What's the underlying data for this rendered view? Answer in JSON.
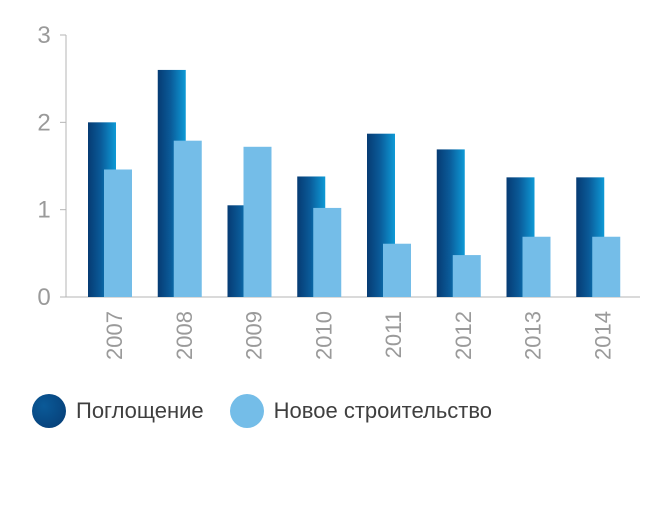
{
  "chart_data": {
    "type": "bar",
    "categories": [
      "2007",
      "2008",
      "2009",
      "2010",
      "2011",
      "2012",
      "2013",
      "2014"
    ],
    "series": [
      {
        "name": "Поглощение",
        "values": [
          2.0,
          2.6,
          1.05,
          1.38,
          1.87,
          1.69,
          1.37,
          1.37
        ],
        "color": "#0a5a98"
      },
      {
        "name": "Новое строительство",
        "values": [
          1.46,
          1.79,
          1.72,
          1.02,
          0.61,
          0.48,
          0.69,
          0.69
        ],
        "color": "#74bde8"
      }
    ],
    "yticks": [
      "0",
      "1",
      "2",
      "3"
    ],
    "ylim": [
      0,
      3
    ],
    "grid": false,
    "legend_position": "bottom-left"
  },
  "colors": {
    "series1_dark": "#063b73",
    "series1_light": "#0e9ad6",
    "series2": "#74bde8",
    "axis": "#b5b5b5",
    "tick_text": "#9a9a9a"
  }
}
